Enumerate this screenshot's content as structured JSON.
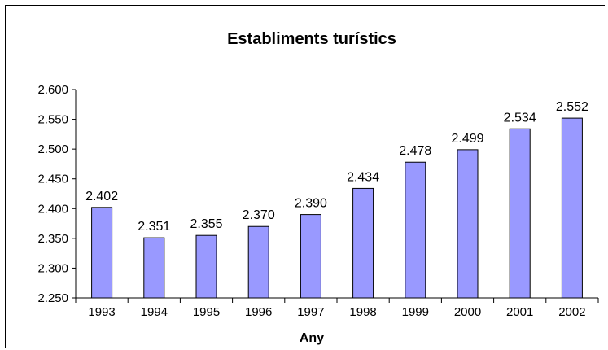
{
  "chart_data": {
    "type": "bar",
    "title": "Establiments turístics",
    "xlabel": "Any",
    "ylabel": "",
    "categories": [
      "1993",
      "1994",
      "1995",
      "1996",
      "1997",
      "1998",
      "1999",
      "2000",
      "2001",
      "2002"
    ],
    "values": [
      2402,
      2351,
      2355,
      2370,
      2390,
      2434,
      2478,
      2499,
      2534,
      2552
    ],
    "data_labels": [
      "2.402",
      "2.351",
      "2.355",
      "2.370",
      "2.390",
      "2.434",
      "2.478",
      "2.499",
      "2.534",
      "2.552"
    ],
    "y_ticks": [
      2250,
      2300,
      2350,
      2400,
      2450,
      2500,
      2550,
      2600
    ],
    "y_tick_labels": [
      "2.250",
      "2.300",
      "2.350",
      "2.400",
      "2.450",
      "2.500",
      "2.550",
      "2.600"
    ],
    "ylim": [
      2250,
      2600
    ],
    "grid": false,
    "legend": "none",
    "colors": {
      "bar_fill": "#9999ff",
      "bar_stroke": "#000000",
      "axis": "#000000"
    }
  }
}
